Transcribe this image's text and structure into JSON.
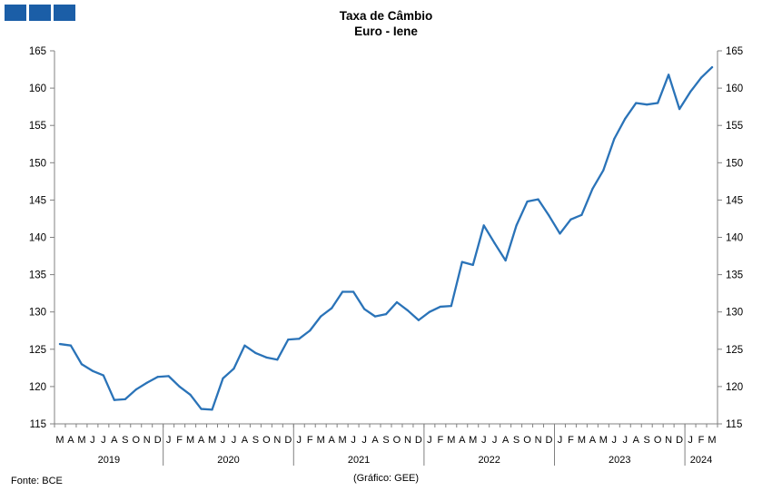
{
  "header": {
    "title_line1": "Taxa de Câmbio",
    "title_line2": "Euro - Iene"
  },
  "footer": {
    "source": "Fonte: BCE",
    "credit": "(Gráfico: GEE)"
  },
  "colors": {
    "line": "#2a73b8",
    "logo": "#1b5ea7",
    "axis": "#808080"
  },
  "chart_data": {
    "type": "line",
    "title": "Taxa de Câmbio Euro - Iene",
    "xlabel": "",
    "ylabel": "",
    "ylim": [
      115,
      165
    ],
    "yticks": [
      115,
      120,
      125,
      130,
      135,
      140,
      145,
      150,
      155,
      160,
      165
    ],
    "y_axes": "left and right",
    "grid": false,
    "month_labels": [
      "M",
      "A",
      "M",
      "J",
      "J",
      "A",
      "S",
      "O",
      "N",
      "D",
      "J",
      "F",
      "M",
      "A",
      "M",
      "J",
      "J",
      "A",
      "S",
      "O",
      "N",
      "D",
      "J",
      "F",
      "M",
      "A",
      "M",
      "J",
      "J",
      "A",
      "S",
      "O",
      "N",
      "D",
      "J",
      "F",
      "M",
      "A",
      "M",
      "J",
      "J",
      "A",
      "S",
      "O",
      "N",
      "D",
      "J",
      "F",
      "M",
      "A",
      "M",
      "J",
      "J",
      "A",
      "S",
      "O",
      "N",
      "D",
      "J",
      "F",
      "M"
    ],
    "year_groups": [
      {
        "label": "2019",
        "months": 10
      },
      {
        "label": "2020",
        "months": 12
      },
      {
        "label": "2021",
        "months": 12
      },
      {
        "label": "2022",
        "months": 12
      },
      {
        "label": "2023",
        "months": 12
      },
      {
        "label": "2024",
        "months": 3
      }
    ],
    "series": [
      {
        "values": [
          125.7,
          125.5,
          123.0,
          122.1,
          121.5,
          118.2,
          118.3,
          119.6,
          120.5,
          121.3,
          121.4,
          120.0,
          118.9,
          117.0,
          116.9,
          121.1,
          122.4,
          125.5,
          124.5,
          123.9,
          123.6,
          126.3,
          126.4,
          127.5,
          129.4,
          130.5,
          132.7,
          132.7,
          130.4,
          129.4,
          129.7,
          131.3,
          130.2,
          128.9,
          130.0,
          130.7,
          130.8,
          136.7,
          136.3,
          141.6,
          139.2,
          136.9,
          141.6,
          144.8,
          145.1,
          142.9,
          140.5,
          142.4,
          143.0,
          146.5,
          149.0,
          153.2,
          155.9,
          158.0,
          157.8,
          158.0,
          161.8,
          157.2,
          159.5,
          161.4,
          162.8
        ]
      }
    ]
  }
}
